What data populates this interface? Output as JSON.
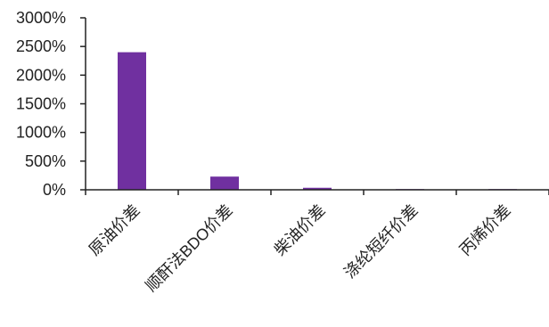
{
  "chart_data": {
    "type": "bar",
    "categories": [
      "原油价差",
      "顺酐法BDO价差",
      "柴油价差",
      "涤纶短纤价差",
      "丙烯价差"
    ],
    "values": [
      2400,
      230,
      35,
      2,
      1
    ],
    "ylim": [
      0,
      3000
    ],
    "yticks": [
      0,
      500,
      1000,
      1500,
      2000,
      2500,
      3000
    ],
    "ytick_labels": [
      "0%",
      "500%",
      "1000%",
      "1500%",
      "2000%",
      "2500%",
      "3000%"
    ],
    "title": "",
    "xlabel": "",
    "ylabel": "",
    "grid": false,
    "legend": "none",
    "bar_color": "#7030a0",
    "axis_color": "#222222"
  }
}
